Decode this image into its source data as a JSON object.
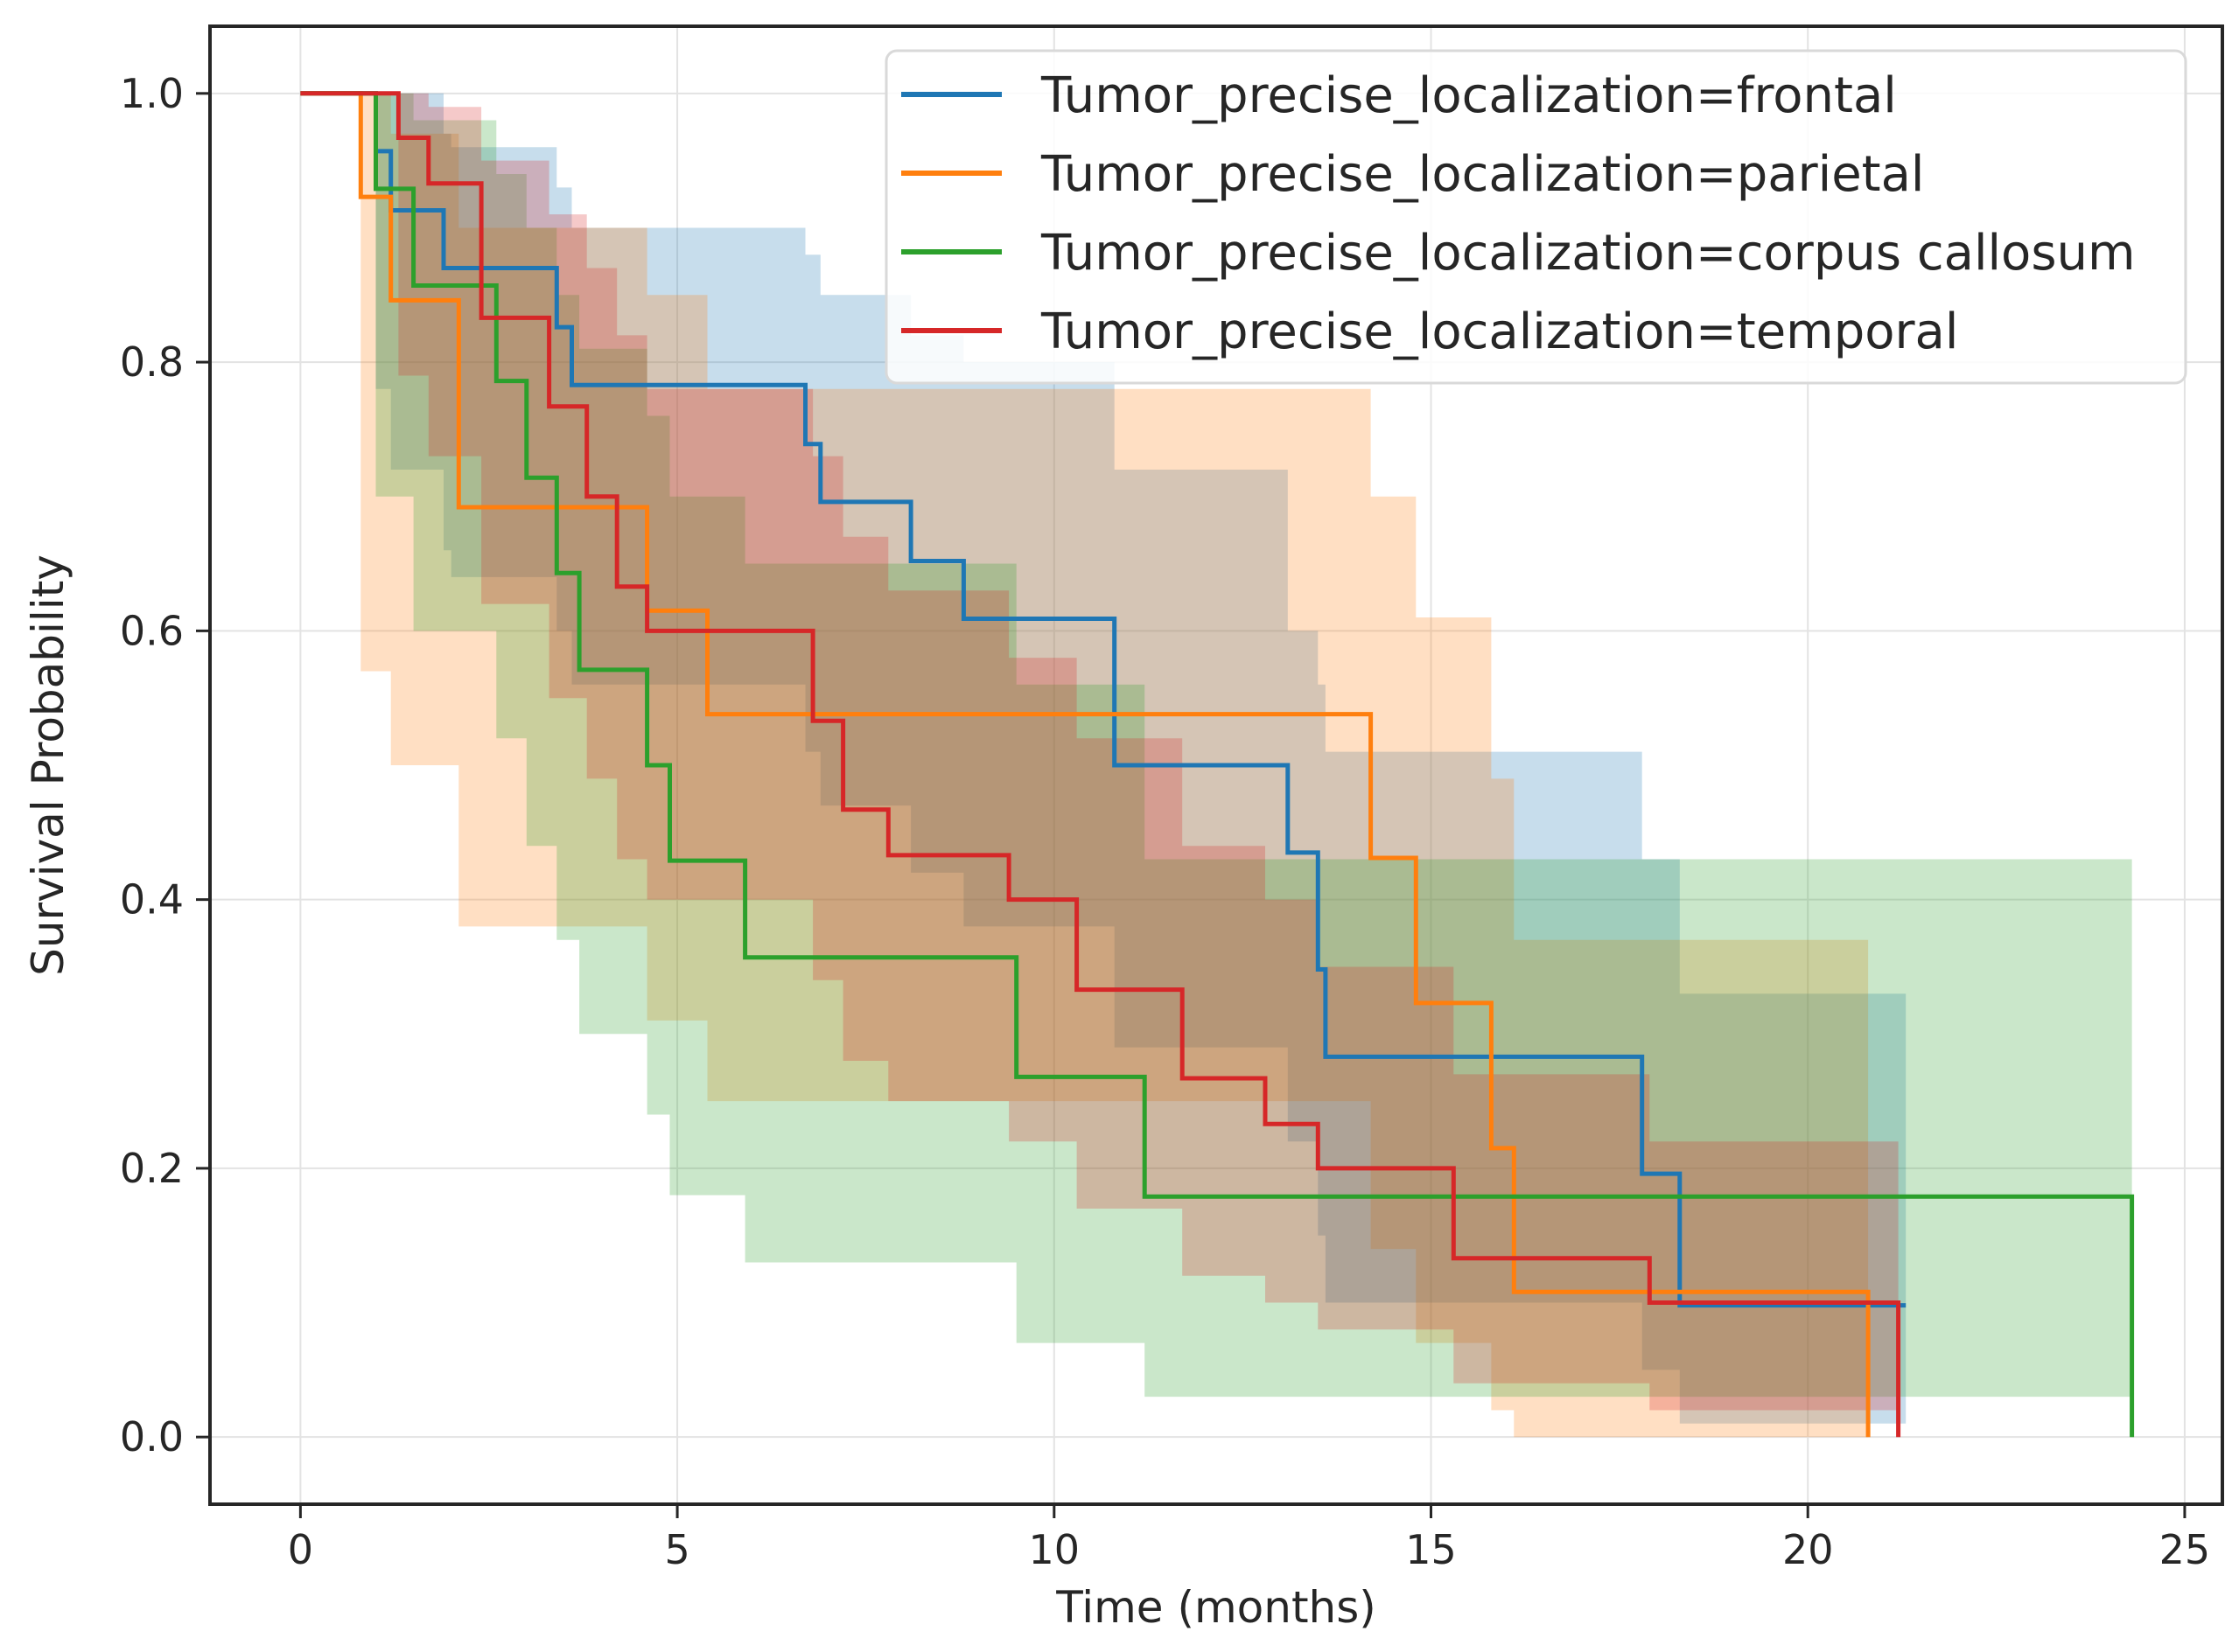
{
  "chart_data": {
    "type": "line",
    "subtype": "kaplan-meier step with confidence bands",
    "xlabel": "Time (months)",
    "ylabel": "Survival Probability",
    "xlim": [
      -1.2,
      25.5
    ],
    "ylim": [
      -0.05,
      1.05
    ],
    "xticks": [
      0,
      5,
      10,
      15,
      20,
      25
    ],
    "xtick_labels": [
      "0",
      "5",
      "10",
      "15",
      "20",
      "25"
    ],
    "yticks": [
      0.0,
      0.2,
      0.4,
      0.6,
      0.8,
      1.0
    ],
    "ytick_labels": [
      "0.0",
      "0.2",
      "0.4",
      "0.6",
      "0.8",
      "1.0"
    ],
    "grid": true,
    "legend_position": "top-right",
    "band_opacity": 0.25,
    "series": [
      {
        "name": "Tumor_precise_localization=frontal",
        "color": "#1f77b4",
        "x": [
          0,
          1.0,
          1.2,
          1.9,
          2.0,
          3.4,
          3.6,
          6.7,
          6.9,
          8.1,
          8.8,
          10.8,
          13.1,
          13.5,
          13.6,
          17.8,
          18.3,
          21.3
        ],
        "y": [
          1.0,
          0.957,
          0.913,
          0.87,
          0.87,
          0.826,
          0.783,
          0.739,
          0.696,
          0.652,
          0.609,
          0.5,
          0.435,
          0.348,
          0.283,
          0.196,
          0.098,
          0.098
        ],
        "ci_upper": [
          1.0,
          1.0,
          1.0,
          0.97,
          0.96,
          0.93,
          0.9,
          0.88,
          0.85,
          0.82,
          0.8,
          0.72,
          0.6,
          0.56,
          0.51,
          0.43,
          0.33,
          0.33
        ],
        "ci_lower": [
          1.0,
          0.78,
          0.72,
          0.66,
          0.64,
          0.6,
          0.56,
          0.51,
          0.47,
          0.42,
          0.38,
          0.29,
          0.22,
          0.15,
          0.1,
          0.05,
          0.01,
          0.01
        ]
      },
      {
        "name": "Tumor_precise_localization=parietal",
        "color": "#ff7f0e",
        "x": [
          0,
          0.8,
          1.2,
          2.1,
          4.6,
          5.4,
          14.2,
          14.8,
          15.8,
          16.1,
          20.8
        ],
        "y": [
          1.0,
          0.923,
          0.846,
          0.692,
          0.615,
          0.538,
          0.431,
          0.323,
          0.215,
          0.108,
          0.0
        ],
        "ci_upper": [
          1.0,
          1.0,
          0.97,
          0.9,
          0.85,
          0.78,
          0.7,
          0.61,
          0.49,
          0.37,
          0.37
        ],
        "ci_lower": [
          1.0,
          0.57,
          0.5,
          0.38,
          0.31,
          0.25,
          0.14,
          0.07,
          0.02,
          0.0,
          0.0
        ]
      },
      {
        "name": "Tumor_precise_localization=corpus callosum",
        "color": "#2ca02c",
        "x": [
          0,
          1.0,
          1.5,
          2.6,
          3.0,
          3.4,
          3.7,
          4.6,
          4.9,
          5.9,
          9.5,
          11.2,
          24.3
        ],
        "y": [
          1.0,
          0.929,
          0.857,
          0.786,
          0.714,
          0.643,
          0.571,
          0.5,
          0.429,
          0.357,
          0.268,
          0.179,
          0.0
        ],
        "ci_upper": [
          1.0,
          1.0,
          0.98,
          0.94,
          0.9,
          0.85,
          0.81,
          0.76,
          0.7,
          0.65,
          0.56,
          0.43,
          0.43
        ],
        "ci_lower": [
          1.0,
          0.7,
          0.6,
          0.52,
          0.44,
          0.37,
          0.3,
          0.24,
          0.18,
          0.13,
          0.07,
          0.03,
          0.03
        ]
      },
      {
        "name": "Tumor_precise_localization=temporal",
        "color": "#d62728",
        "x": [
          0,
          1.3,
          1.7,
          2.4,
          3.3,
          3.8,
          4.2,
          4.6,
          6.8,
          7.2,
          7.8,
          9.4,
          10.3,
          11.7,
          12.8,
          13.5,
          15.3,
          17.9,
          21.2
        ],
        "y": [
          1.0,
          0.967,
          0.933,
          0.833,
          0.767,
          0.7,
          0.633,
          0.6,
          0.533,
          0.467,
          0.433,
          0.4,
          0.333,
          0.267,
          0.233,
          0.2,
          0.133,
          0.1,
          0.0
        ],
        "ci_upper": [
          1.0,
          1.0,
          0.99,
          0.95,
          0.91,
          0.87,
          0.82,
          0.78,
          0.73,
          0.67,
          0.63,
          0.58,
          0.52,
          0.44,
          0.4,
          0.35,
          0.27,
          0.22,
          0.22
        ],
        "ci_lower": [
          1.0,
          0.79,
          0.73,
          0.62,
          0.55,
          0.49,
          0.43,
          0.4,
          0.34,
          0.28,
          0.25,
          0.22,
          0.17,
          0.12,
          0.1,
          0.08,
          0.04,
          0.02,
          0.02
        ]
      }
    ]
  }
}
